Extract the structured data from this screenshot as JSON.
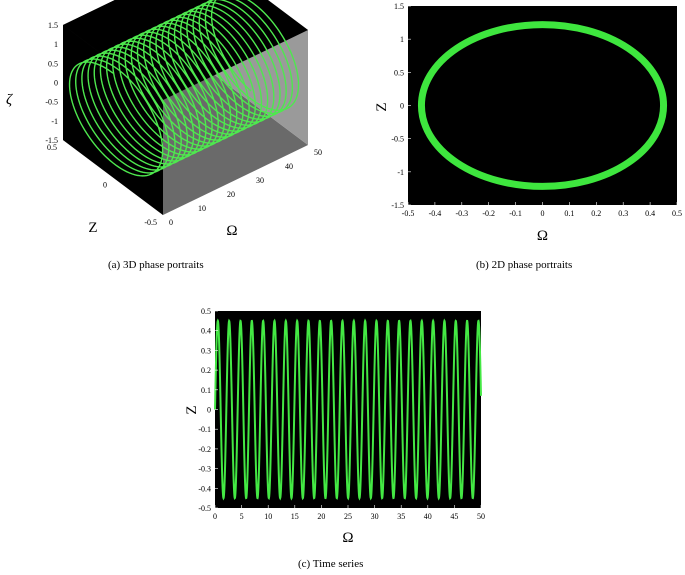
{
  "charts": [
    {
      "caption": "(a) 3D phase portraits",
      "type": "line3d",
      "xlabel": "Z",
      "ylabel": "Ω",
      "zlabel": "ζ",
      "x_ticks": [
        "0.5",
        "0",
        "-0.5"
      ],
      "y_ticks": [
        "0",
        "10",
        "20",
        "30",
        "40",
        "50"
      ],
      "z_ticks": [
        "1.5",
        "1",
        "0.5",
        "0",
        "-0.5",
        "-1",
        "-1.5"
      ],
      "colors": {
        "background": "#000000",
        "line": "#4ee84e",
        "box_side": "#9a9a9a",
        "box_floor": "#6a6a6a"
      }
    },
    {
      "caption": "(b) 2D phase portraits",
      "type": "line",
      "xlabel": "Ω",
      "ylabel": "Z",
      "x_ticks": [
        "-0.5",
        "-0.4",
        "-0.3",
        "-0.2",
        "-0.1",
        "0",
        "0.1",
        "0.2",
        "0.3",
        "0.4",
        "0.5"
      ],
      "y_ticks": [
        "1.5",
        "1",
        "0.5",
        "0",
        "-0.5",
        "-1",
        "-1.5"
      ],
      "colors": {
        "background": "#000000",
        "line": "#3ee63e"
      }
    },
    {
      "caption": "(c) Time series",
      "type": "line",
      "xlabel": "Ω",
      "ylabel": "Z",
      "x_ticks": [
        "0",
        "5",
        "10",
        "15",
        "20",
        "25",
        "30",
        "35",
        "40",
        "45",
        "50"
      ],
      "y_ticks": [
        "0.5",
        "0.4",
        "0.3",
        "0.2",
        "0.1",
        "0",
        "-0.1",
        "-0.2",
        "-0.3",
        "-0.4",
        "-0.5"
      ],
      "colors": {
        "background": "#000000",
        "line": "#44e844"
      }
    }
  ],
  "chart_data": [
    {
      "type": "line3d",
      "series": [
        {
          "x": "Z = 0.45 sin(2.95 Ω)",
          "y": "Ω from 0 to 50",
          "z": "ζ = 1.22 cos(2.95 Ω)"
        }
      ],
      "xlim": [
        -0.5,
        0.5
      ],
      "ylim": [
        0,
        50
      ],
      "zlim": [
        -1.5,
        1.5
      ],
      "xlabel": "Z",
      "ylabel": "Ω",
      "zlabel": "ζ"
    },
    {
      "type": "line",
      "series": [
        {
          "x_amplitude": 0.45,
          "y_amplitude": 1.22,
          "thickness_y": 0.06
        }
      ],
      "xlim": [
        -0.5,
        0.5
      ],
      "ylim": [
        -1.5,
        1.5
      ],
      "xlabel": "Ω",
      "ylabel": "Z"
    },
    {
      "type": "line",
      "series": [
        {
          "amplitude": 0.45,
          "angular_frequency": 2.95,
          "x_range": [
            0,
            50
          ]
        }
      ],
      "xlim": [
        0,
        50
      ],
      "ylim": [
        -0.5,
        0.5
      ],
      "xlabel": "Ω",
      "ylabel": "Z"
    }
  ]
}
